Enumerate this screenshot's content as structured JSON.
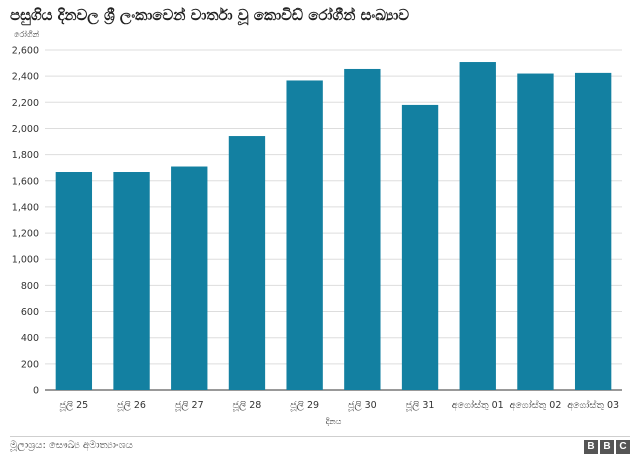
{
  "chart_data": {
    "type": "bar",
    "title": "පසුගිය දිනවල ශ්‍රී ලංකාවෙන් වාර්තා වූ කොවිඩ් රෝගීන් සංඛ්‍යාව",
    "ylabel": "රෝගීන්",
    "xlabel": "දිනය",
    "categories": [
      "ජූලි 25",
      "ජූලි 26",
      "ජූලි 27",
      "ජූලි 28",
      "ජූලි 29",
      "ජූලි 30",
      "ජූලි 31",
      "අගෝස්තු 01",
      "අගෝස්තු 02",
      "අගෝස්තු 03"
    ],
    "values": [
      1667,
      1667,
      1709,
      1942,
      2367,
      2455,
      2180,
      2508,
      2420,
      2425
    ],
    "ylim": [
      0,
      2600
    ],
    "yticks": [
      0,
      200,
      400,
      600,
      800,
      1000,
      1200,
      1400,
      1600,
      1800,
      2000,
      2200,
      2400,
      2600
    ],
    "ytick_labels": [
      "0",
      "200",
      "400",
      "600",
      "800",
      "1,000",
      "1,200",
      "1,400",
      "1,600",
      "1,800",
      "2,000",
      "2,200",
      "2,400",
      "2,600"
    ],
    "bar_color": "#1380a1",
    "grid": true
  },
  "footer": {
    "source": "මූලාශ්‍රය: සෞඛ්‍ය අමාත්‍යාංශය",
    "logo": [
      "B",
      "B",
      "C"
    ]
  }
}
